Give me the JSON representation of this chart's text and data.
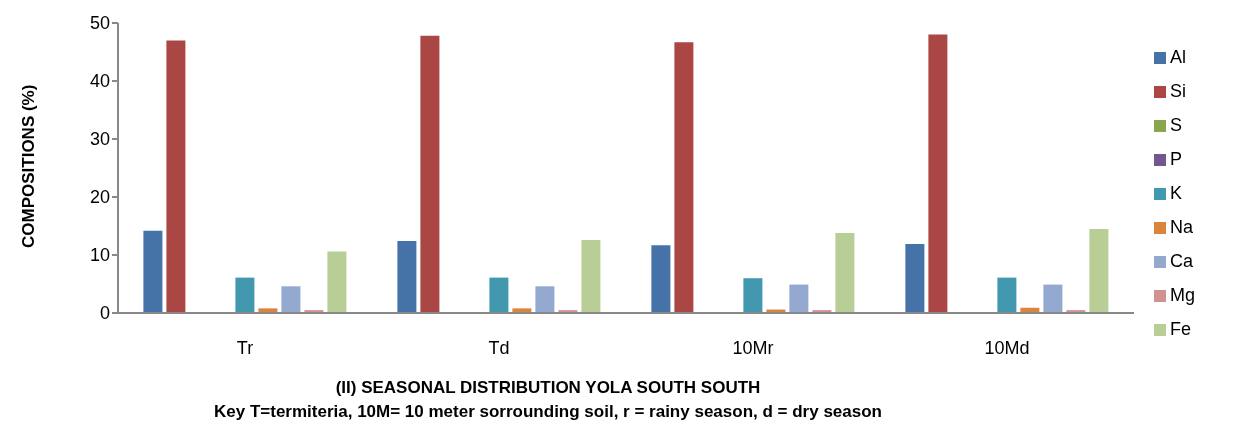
{
  "chart_data": {
    "type": "bar",
    "title": "(II) SEASONAL DISTRIBUTION YOLA SOUTH SOUTH",
    "subtitle": "Key T=termiteria, 10M= 10 meter sorrounding soil, r = rainy season, d = dry season",
    "ylabel": "COMPOSITIONS (%)",
    "categories": [
      "Tr",
      "Td",
      "10Mr",
      "10Md"
    ],
    "ylim": [
      0,
      50
    ],
    "yticks": [
      0,
      10,
      20,
      30,
      40,
      50
    ],
    "grid": false,
    "legend": "right",
    "series": [
      {
        "name": "Al",
        "color": "#4572a7",
        "values": [
          14.2,
          12.4,
          11.7,
          11.9
        ]
      },
      {
        "name": "Si",
        "color": "#aa4643",
        "values": [
          47,
          47.8,
          46.7,
          48
        ]
      },
      {
        "name": "S",
        "color": "#89a54e",
        "values": [
          0,
          0,
          0,
          0
        ]
      },
      {
        "name": "P",
        "color": "#71588f",
        "values": [
          0,
          0,
          0,
          0
        ]
      },
      {
        "name": "K",
        "color": "#4198af",
        "values": [
          6.1,
          6.1,
          6,
          6.1
        ]
      },
      {
        "name": "Na",
        "color": "#db843d",
        "values": [
          0.8,
          0.8,
          0.6,
          0.9
        ]
      },
      {
        "name": "Ca",
        "color": "#93a9cf",
        "values": [
          4.6,
          4.6,
          4.9,
          4.9
        ]
      },
      {
        "name": "Mg",
        "color": "#d19392",
        "values": [
          0.5,
          0.5,
          0.5,
          0.5
        ]
      },
      {
        "name": "Fe",
        "color": "#b9cd96",
        "values": [
          10.6,
          12.6,
          13.8,
          14.5
        ]
      }
    ]
  }
}
